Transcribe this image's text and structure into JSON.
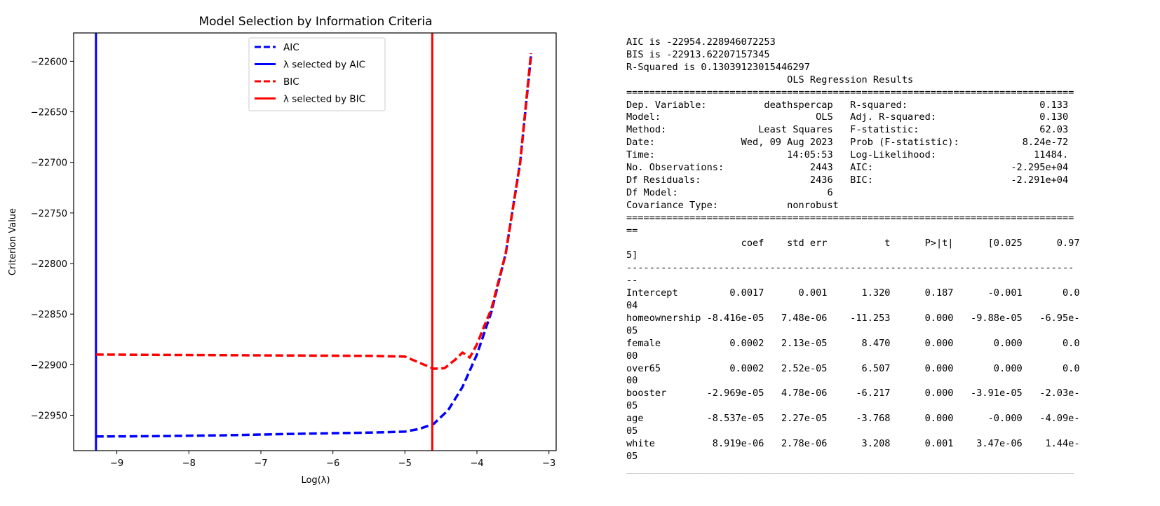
{
  "chart_data": {
    "type": "line",
    "title": "Model Selection by Information Criteria",
    "xlabel": "Log(λ)",
    "ylabel": "Criterion Value",
    "xlim": [
      -9.6,
      -2.9
    ],
    "ylim": [
      -22985,
      -22572
    ],
    "xticks": [
      -9,
      -8,
      -7,
      -6,
      -5,
      -4,
      -3
    ],
    "yticks": [
      -22600,
      -22650,
      -22700,
      -22750,
      -22800,
      -22850,
      -22900,
      -22950
    ],
    "legend_position": "upper center",
    "series": [
      {
        "name": "AIC",
        "style": "dashed",
        "color": "#0000ff",
        "x": [
          -9.29,
          -8.5,
          -7.5,
          -6.5,
          -5.5,
          -5.0,
          -4.8,
          -4.6,
          -4.4,
          -4.2,
          -4.0,
          -3.8,
          -3.6,
          -3.4,
          -3.25
        ],
        "y": [
          -22971,
          -22970.7,
          -22969.8,
          -22968.4,
          -22967.2,
          -22966.2,
          -22963.5,
          -22958.5,
          -22945,
          -22922,
          -22890,
          -22848,
          -22790,
          -22700,
          -22595
        ]
      },
      {
        "name": "λ selected by AIC",
        "style": "solid",
        "color": "#0000ff",
        "vline_x": -9.29
      },
      {
        "name": "BIC",
        "style": "dashed",
        "color": "#ff0000",
        "x": [
          -9.29,
          -8.5,
          -7.5,
          -6.5,
          -5.5,
          -5.0,
          -4.8,
          -4.6,
          -4.45,
          -4.3,
          -4.2,
          -4.1,
          -4.0,
          -3.9,
          -3.8,
          -3.6,
          -3.4,
          -3.25
        ],
        "y": [
          -22890,
          -22890.3,
          -22890.6,
          -22891,
          -22891.3,
          -22892,
          -22898,
          -22904,
          -22903.5,
          -22895,
          -22888,
          -22893,
          -22880,
          -22862,
          -22845,
          -22790,
          -22700,
          -22592
        ]
      },
      {
        "name": "λ selected by BIC",
        "style": "solid",
        "color": "#ff0000",
        "vline_x": -4.62
      }
    ]
  },
  "stats_text": [
    "AIC is -22954.228946072253",
    "BIS is -22913.62207157345",
    "R-Squared is 0.13039123015446297",
    "                            OLS Regression Results                            ",
    "==============================================================================",
    "Dep. Variable:          deathspercap   R-squared:                       0.133",
    "Model:                           OLS   Adj. R-squared:                  0.130",
    "Method:                Least Squares   F-statistic:                     62.03",
    "Date:               Wed, 09 Aug 2023   Prob (F-statistic):           8.24e-72",
    "Time:                       14:05:53   Log-Likelihood:                 11484.",
    "No. Observations:               2443   AIC:                        -2.295e+04",
    "Df Residuals:                   2436   BIC:                        -2.291e+04",
    "Df Model:                          6                                         ",
    "Covariance Type:            nonrobust                                         ",
    "==============================================================================",
    "==",
    "                    coef    std err          t      P>|t|      [0.025      0.97",
    "5]",
    "------------------------------------------------------------------------------",
    "--",
    "Intercept         0.0017      0.001      1.320      0.187      -0.001       0.0",
    "04",
    "homeownership -8.416e-05   7.48e-06    -11.253      0.000   -9.88e-05   -6.95e-",
    "05",
    "female            0.0002   2.13e-05      8.470      0.000       0.000       0.0",
    "00",
    "over65            0.0002   2.52e-05      6.507      0.000       0.000       0.0",
    "00",
    "booster       -2.969e-05   4.78e-06     -6.217      0.000   -3.91e-05   -2.03e-",
    "05",
    "age           -8.537e-05   2.27e-05     -3.768      0.000      -0.000   -4.09e-",
    "05",
    "white          8.919e-06   2.78e-06      3.208      0.001    3.47e-06    1.44e-",
    "05",
    "______________________________________________________________________________"
  ]
}
